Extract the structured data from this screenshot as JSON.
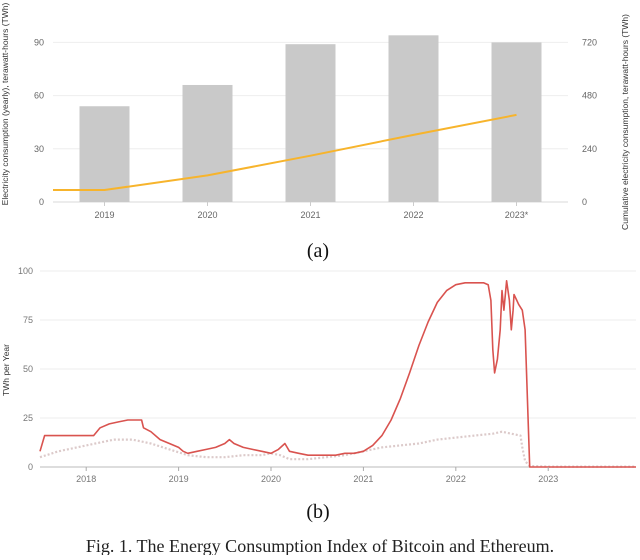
{
  "chart_data": [
    {
      "type": "bar",
      "categories": [
        "2019",
        "2020",
        "2021",
        "2022",
        "2023*"
      ],
      "series": [
        {
          "values": [
            54,
            66,
            89,
            94,
            90
          ]
        },
        {
          "values": [
            54,
            120,
            209,
            303,
            393
          ]
        }
      ],
      "ylabel": "Electricity consumption (yearly), terawatt-hours (TWh)",
      "y2label": "Cumulative electricity consumption, terawatt-hours (TWh)",
      "yticks": [
        "0",
        "30",
        "60",
        "90"
      ],
      "y2ticks": [
        "0",
        "240",
        "480",
        "720"
      ],
      "ylim": [
        0,
        97
      ],
      "y2lim": [
        0,
        776
      ],
      "bar_color": "#c9c9c9",
      "line_color": "#f7b42c",
      "caption": "(a)"
    },
    {
      "type": "line",
      "ylabel": "TWh per Year",
      "yticks": [
        "0",
        "25",
        "50",
        "75",
        "100"
      ],
      "xticks": [
        "2018",
        "2019",
        "2020",
        "2021",
        "2022",
        "2023"
      ],
      "ylim": [
        0,
        100
      ],
      "xlim": [
        2017.5,
        2023.95
      ],
      "series": [
        {
          "color": "#d9534f",
          "x": [
            2017.5,
            2017.55,
            2017.62,
            2017.7,
            2017.8,
            2017.9,
            2018.0,
            2018.08,
            2018.15,
            2018.25,
            2018.35,
            2018.45,
            2018.55,
            2018.6,
            2018.62,
            2018.7,
            2018.8,
            2018.9,
            2019.0,
            2019.05,
            2019.1,
            2019.2,
            2019.3,
            2019.4,
            2019.5,
            2019.55,
            2019.6,
            2019.7,
            2019.8,
            2019.9,
            2020.0,
            2020.08,
            2020.15,
            2020.2,
            2020.3,
            2020.4,
            2020.5,
            2020.6,
            2020.7,
            2020.8,
            2020.9,
            2021.0,
            2021.1,
            2021.2,
            2021.3,
            2021.4,
            2021.5,
            2021.6,
            2021.7,
            2021.8,
            2021.9,
            2022.0,
            2022.1,
            2022.2,
            2022.25,
            2022.3,
            2022.35,
            2022.38,
            2022.4,
            2022.42,
            2022.45,
            2022.48,
            2022.5,
            2022.52,
            2022.55,
            2022.58,
            2022.6,
            2022.62,
            2022.63,
            2022.66,
            2022.68,
            2022.72,
            2022.75,
            2022.8,
            2022.85,
            2022.95,
            2023.1,
            2023.3,
            2023.5,
            2023.7,
            2023.95
          ],
          "y": [
            8,
            16,
            16,
            16,
            16,
            16,
            16,
            16,
            20,
            22,
            23,
            24,
            24,
            24,
            20,
            18,
            14,
            12,
            10,
            8,
            7,
            8,
            9,
            10,
            12,
            14,
            12,
            10,
            9,
            8,
            7,
            9,
            12,
            8,
            7,
            6,
            6,
            6,
            6,
            7,
            7,
            8,
            11,
            16,
            24,
            35,
            48,
            62,
            74,
            84,
            90,
            93,
            94,
            94,
            94,
            94,
            93,
            85,
            60,
            48,
            55,
            70,
            90,
            80,
            95,
            85,
            70,
            80,
            88,
            85,
            83,
            80,
            70,
            0,
            0,
            0,
            0,
            0,
            0,
            0,
            0
          ]
        },
        {
          "color": "#d8c4c4",
          "x": [
            2017.5,
            2017.7,
            2017.9,
            2018.1,
            2018.3,
            2018.5,
            2018.7,
            2018.9,
            2019.1,
            2019.3,
            2019.5,
            2019.7,
            2019.9,
            2020.0,
            2020.1,
            2020.2,
            2020.4,
            2020.6,
            2020.8,
            2021.0,
            2021.2,
            2021.4,
            2021.6,
            2021.8,
            2022.0,
            2022.2,
            2022.4,
            2022.5,
            2022.6,
            2022.7,
            2022.72,
            2022.75,
            2022.8,
            2023.0,
            2023.95
          ],
          "y": [
            5,
            8,
            10,
            12,
            14,
            14,
            12,
            9,
            6,
            5,
            5,
            6,
            6,
            7,
            6,
            4,
            4,
            5,
            6,
            8,
            10,
            11,
            12,
            14,
            15,
            16,
            17,
            18,
            17,
            16,
            10,
            3,
            0.5,
            0.2,
            0.2
          ]
        }
      ],
      "caption": "(b)"
    }
  ],
  "figure_caption": "Fig. 1.   The Energy Consumption Index of Bitcoin and Ethereum."
}
